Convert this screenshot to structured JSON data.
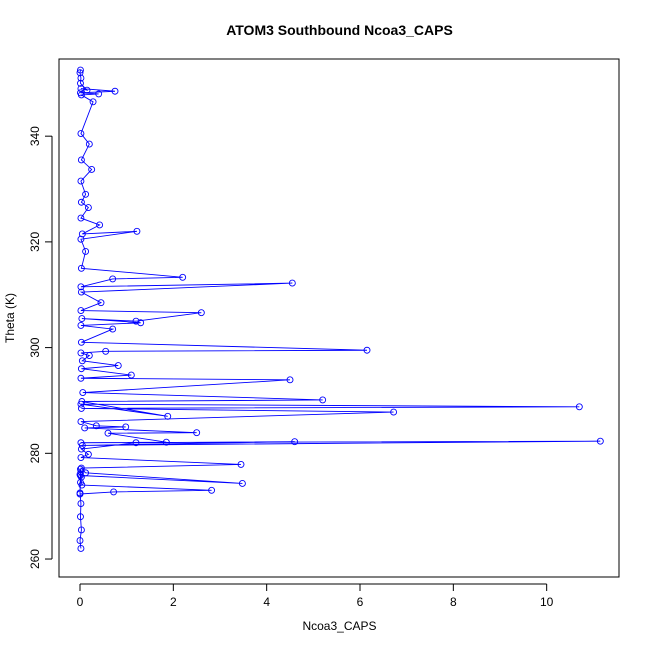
{
  "chart_data": {
    "type": "line",
    "title": "ATOM3 Southbound Ncoa3_CAPS",
    "xlabel": "Ncoa3_CAPS",
    "ylabel": "Theta (K)",
    "xlim": [
      -0.45,
      11.55
    ],
    "ylim": [
      256.6,
      354.6
    ],
    "x_ticks": [
      0,
      2,
      4,
      6,
      8,
      10
    ],
    "y_ticks": [
      260,
      280,
      300,
      320,
      340
    ],
    "x_tick_labels": [
      "0",
      "2",
      "4",
      "6",
      "8",
      "10"
    ],
    "y_tick_labels": [
      "260",
      "280",
      "300",
      "320",
      "340"
    ],
    "grid": false,
    "legend": "none",
    "colors": {
      "series": "#0000ff",
      "axis": "#000000",
      "background": "#ffffff"
    },
    "series": [
      {
        "marker": "open-circle",
        "line": true,
        "x": [
          0.02,
          0.0,
          0.03,
          0.01,
          0.02,
          0.0,
          0.01,
          0.03,
          0.0,
          0.02,
          0.01,
          0.0,
          0.72,
          2.82,
          0.04,
          0.01,
          3.48,
          0.12,
          0.03,
          3.45,
          0.02,
          0.18,
          0.03,
          1.2,
          4.6,
          0.05,
          11.15,
          0.02,
          1.85,
          0.6,
          2.5,
          0.1,
          0.98,
          0.35,
          0.02,
          6.72,
          0.03,
          10.7,
          0.02,
          1.88,
          0.04,
          5.2,
          0.06,
          4.5,
          0.02,
          1.1,
          0.03,
          0.82,
          0.05,
          0.2,
          0.02,
          0.55,
          6.15,
          0.03,
          0.7,
          0.02,
          1.3,
          0.04,
          1.2,
          2.6,
          0.02,
          0.45,
          0.03,
          4.55,
          0.02,
          0.7,
          2.2,
          0.03,
          0.12,
          0.02,
          1.22,
          0.05,
          0.42,
          0.02,
          0.18,
          0.03,
          0.12,
          0.02,
          0.25,
          0.03,
          0.2,
          0.02,
          0.28,
          0.03,
          0.4,
          0.01,
          0.75,
          0.02,
          0.15,
          0.01,
          0.02,
          0.0,
          0.01
        ],
        "y": [
          262.0,
          263.5,
          265.5,
          268.0,
          270.5,
          272.5,
          274.5,
          275.5,
          276.0,
          276.5,
          277.0,
          272.3,
          272.7,
          273.0,
          274.0,
          275.8,
          274.3,
          276.3,
          277.2,
          277.9,
          279.2,
          279.8,
          280.8,
          282.0,
          282.2,
          281.5,
          282.3,
          282.0,
          282.1,
          283.8,
          283.9,
          284.8,
          285.0,
          285.2,
          286.0,
          287.8,
          288.5,
          288.8,
          289.3,
          287.0,
          289.8,
          290.1,
          291.5,
          293.9,
          294.2,
          294.8,
          296.0,
          296.6,
          297.5,
          298.5,
          299.0,
          299.3,
          299.5,
          301.0,
          303.5,
          304.2,
          304.7,
          305.5,
          305.0,
          306.6,
          307.0,
          308.5,
          310.5,
          312.2,
          311.5,
          313.0,
          313.3,
          315.0,
          318.2,
          320.5,
          322.0,
          321.5,
          323.2,
          324.5,
          326.5,
          327.5,
          329.0,
          331.5,
          333.7,
          335.5,
          338.5,
          340.5,
          346.5,
          347.8,
          348.0,
          348.2,
          348.5,
          349.0,
          348.7,
          350.0,
          351.0,
          352.0,
          352.5
        ]
      }
    ]
  }
}
